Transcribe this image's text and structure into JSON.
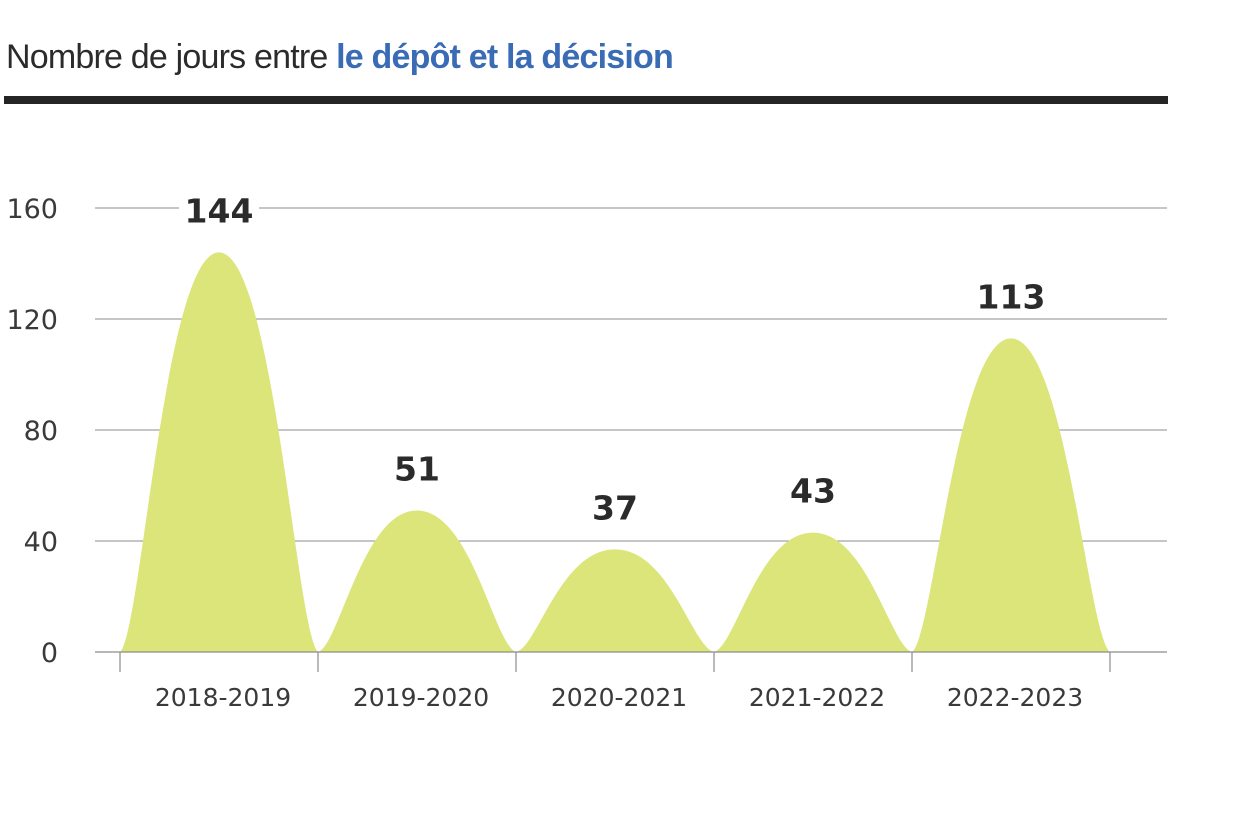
{
  "header": {
    "title_prefix": "Nombre de jours entre",
    "title_highlight": "le dépôt et la décision"
  },
  "colors": {
    "highlight": "#3a6bb5",
    "fill": "#dbe57a",
    "text": "#2b2b2b",
    "grid": "#8c8c8c",
    "rule": "#252525"
  },
  "chart_data": {
    "type": "area",
    "title": "Nombre de jours entre le dépôt et la décision",
    "categories": [
      "2018-2019",
      "2019-2020",
      "2020-2021",
      "2021-2022",
      "2022-2023"
    ],
    "values": [
      144,
      51,
      37,
      43,
      113
    ],
    "ylim": [
      0,
      160
    ],
    "yticks": [
      0,
      40,
      80,
      120,
      160
    ],
    "grid": true,
    "legend": "none"
  }
}
